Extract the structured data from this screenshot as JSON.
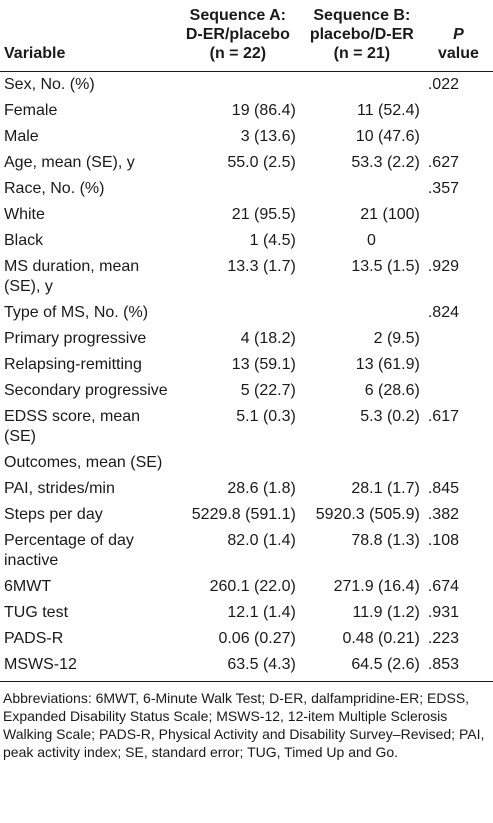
{
  "header": {
    "variable": "Variable",
    "seq_a_line1": "Sequence A:",
    "seq_a_line2": "D-ER/placebo",
    "seq_a_line3": "(n = 22)",
    "seq_b_line1": "Sequence B:",
    "seq_b_line2": "placebo/D-ER",
    "seq_b_line3": "(n = 21)",
    "p_line1": "P",
    "p_line2": "value"
  },
  "rows": [
    {
      "label": "Sex, No. (%)",
      "a": "",
      "b": "",
      "p": ".022"
    },
    {
      "label": "Female",
      "a": "19 (86.4)",
      "b": "11 (52.4)",
      "p": ""
    },
    {
      "label": "Male",
      "a": "3 (13.6)",
      "b": "10 (47.6)",
      "p": ""
    },
    {
      "label": "Age, mean (SE), y",
      "a": "55.0 (2.5)",
      "b": "53.3 (2.2)",
      "p": ".627"
    },
    {
      "label": "Race, No. (%)",
      "a": "",
      "b": "",
      "p": ".357"
    },
    {
      "label": "White",
      "a": "21 (95.5)",
      "b": "21 (100)",
      "p": ""
    },
    {
      "label": "Black",
      "a": "1 (4.5)",
      "b": "0",
      "p": ""
    },
    {
      "label": "MS duration, mean (SE), y",
      "a": "13.3 (1.7)",
      "b": "13.5 (1.5)",
      "p": ".929"
    },
    {
      "label": "Type of MS, No. (%)",
      "a": "",
      "b": "",
      "p": ".824"
    },
    {
      "label": "Primary progressive",
      "a": "4 (18.2)",
      "b": "2 (9.5)",
      "p": ""
    },
    {
      "label": "Relapsing-remitting",
      "a": "13 (59.1)",
      "b": "13 (61.9)",
      "p": ""
    },
    {
      "label": "Secondary progressive",
      "a": "5 (22.7)",
      "b": "6 (28.6)",
      "p": ""
    },
    {
      "label": "EDSS score, mean (SE)",
      "a": "5.1 (0.3)",
      "b": "5.3 (0.2)",
      "p": ".617"
    },
    {
      "label": "Outcomes, mean (SE)",
      "a": "",
      "b": "",
      "p": ""
    },
    {
      "label": "PAI, strides/min",
      "a": "28.6 (1.8)",
      "b": "28.1 (1.7)",
      "p": ".845"
    },
    {
      "label": "Steps per day",
      "a": "5229.8 (591.1)",
      "b": "5920.3 (505.9)",
      "p": ".382"
    },
    {
      "label": "Percentage of day inactive",
      "a": "82.0 (1.4)",
      "b": "78.8 (1.3)",
      "p": ".108"
    },
    {
      "label": "6MWT",
      "a": "260.1 (22.0)",
      "b": "271.9 (16.4)",
      "p": ".674"
    },
    {
      "label": "TUG test",
      "a": "12.1 (1.4)",
      "b": "11.9 (1.2)",
      "p": ".931"
    },
    {
      "label": "PADS-R",
      "a": "0.06 (0.27)",
      "b": "0.48 (0.21)",
      "p": ".223"
    },
    {
      "label": "MSWS-12",
      "a": "63.5 (4.3)",
      "b": "64.5 (2.6)",
      "p": ".853"
    }
  ],
  "footnote": "Abbreviations: 6MWT, 6-Minute Walk Test; D-ER, dalfampridine-ER; EDSS, Expanded Disability Status Scale; MSWS-12, 12-item Multiple Sclerosis Walking Scale; PADS-R, Physical Activity and Disability Survey–Revised; PAI, peak activity index; SE, standard error; TUG, Timed Up and Go."
}
